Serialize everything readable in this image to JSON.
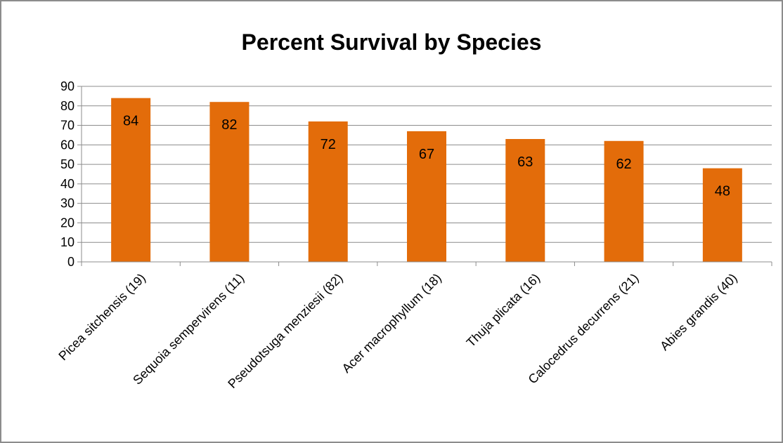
{
  "chart_data": {
    "type": "bar",
    "title": "Percent Survival by Species",
    "xlabel": "",
    "ylabel": "",
    "categories": [
      "Picea sitchensis (19)",
      "Sequoia sempervirens (11)",
      "Pseudotsuga menziesii (82)",
      "Acer macrophyllum (18)",
      "Thuja plicata (16)",
      "Calocedrus decurrens (21)",
      "Abies grandis (40)"
    ],
    "values": [
      84,
      82,
      72,
      67,
      63,
      62,
      48
    ],
    "ylim": [
      0,
      90
    ],
    "yticks": [
      0,
      10,
      20,
      30,
      40,
      50,
      60,
      70,
      80,
      90
    ],
    "grid": true,
    "legend": "none",
    "bar_color": "#e36c0a",
    "data_labels": "inside-end"
  }
}
